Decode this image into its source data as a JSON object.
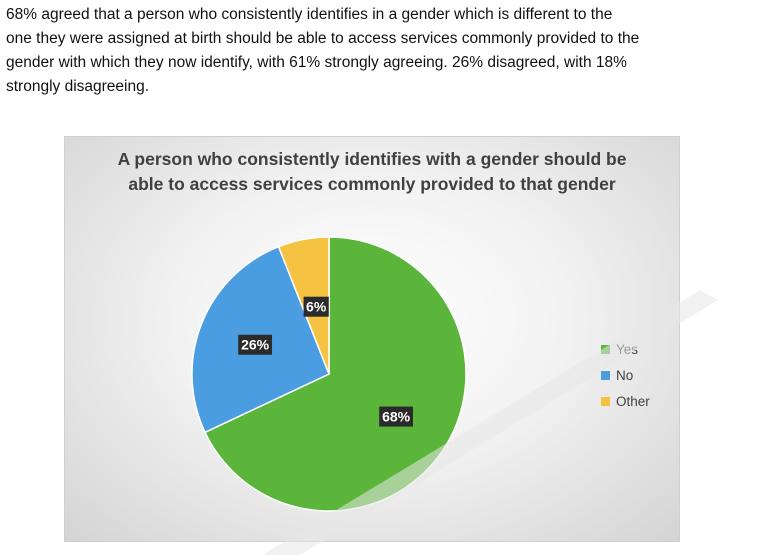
{
  "intro": {
    "line1": "68% agreed that a person who consistently identifies in a gender which is different to the",
    "line2": "one they were assigned at birth should be able to access services commonly provided to the",
    "line3": "gender with which they now identify, with 61% strongly agreeing. 26% disagreed, with 18%",
    "line4": "strongly disagreeing."
  },
  "chart_data": {
    "type": "pie",
    "title_line1": "A person who consistently identifies with a gender should be",
    "title_line2": "able to access services commonly provided to that gender",
    "slices": [
      {
        "label": "Yes",
        "value": 68,
        "display": "68%",
        "color": "#5ab53a"
      },
      {
        "label": "No",
        "value": 26,
        "display": "26%",
        "color": "#4a9de0"
      },
      {
        "label": "Other",
        "value": 6,
        "display": "6%",
        "color": "#f5c242"
      }
    ],
    "legend_position": "right",
    "start_angle": "12 o'clock",
    "direction": "clockwise",
    "data_label_style": "white text on dark box"
  },
  "colors": {
    "text": "#111111",
    "chart_text": "#404040",
    "label_box": "#2b2b2b",
    "watermark": "#e8e8e8"
  }
}
